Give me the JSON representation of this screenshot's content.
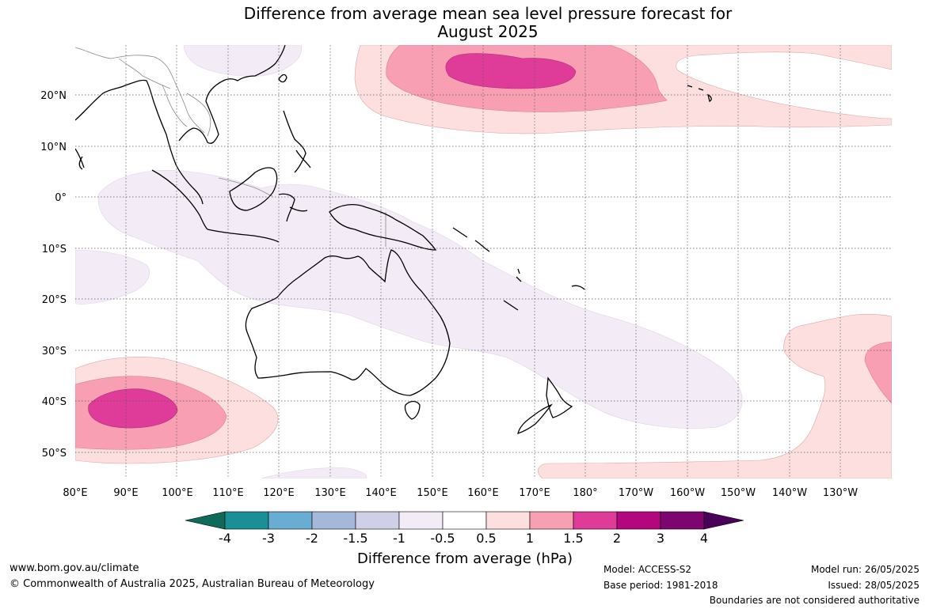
{
  "title": {
    "line1": "Difference from average mean sea level pressure forecast for",
    "line2": "August 2025"
  },
  "axes": {
    "lon_labels": [
      "80°E",
      "90°E",
      "100°E",
      "110°E",
      "120°E",
      "130°E",
      "140°E",
      "150°E",
      "160°E",
      "170°E",
      "180°",
      "170°W",
      "160°W",
      "150°W",
      "140°W",
      "130°W"
    ],
    "lat_labels": [
      "20°N",
      "10°N",
      "0°",
      "10°S",
      "20°S",
      "30°S",
      "40°S",
      "50°S"
    ]
  },
  "colorbar": {
    "title": "Difference from average (hPa)",
    "tick_labels": [
      "-4",
      "-3",
      "-2",
      "-1.5",
      "-1",
      "-0.5",
      "0.5",
      "1",
      "1.5",
      "2",
      "3",
      "4"
    ],
    "colors": [
      "#0e6b5a",
      "#1a8f96",
      "#6aadd4",
      "#a6b8da",
      "#cfd0e6",
      "#f3ecf6",
      "#ffffff",
      "#fddfe0",
      "#f89fb4",
      "#df3b98",
      "#b3067f",
      "#7d056f",
      "#4a0158"
    ]
  },
  "footer": {
    "website": "www.bom.gov.au/climate",
    "copyright": "© Commonwealth of Australia 2025, Australian Bureau of Meteorology",
    "model": "Model: ACCESS-S2",
    "base_period": "Base period: 1981-2018",
    "model_run": "Model run: 26/05/2025",
    "issued": "Issued: 28/05/2025",
    "disclaimer": "Boundaries are not considered authoritative"
  }
}
